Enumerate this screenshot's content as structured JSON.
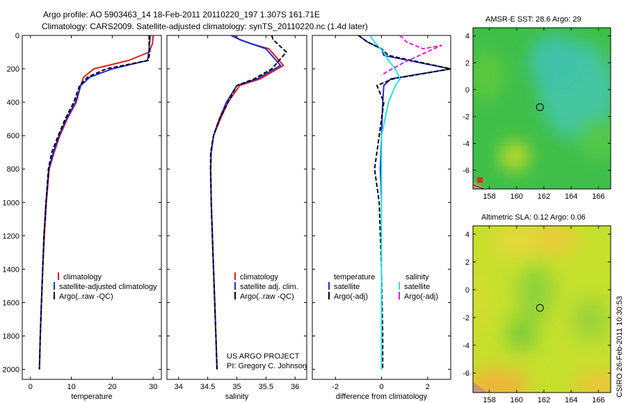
{
  "header": {
    "line1": "Argo profile: AO 5903463_14 18-Feb-2011 20110220_197 1.307S 161.71E",
    "line2": "Climatology: CARS2009. Satellite-adjusted climatology: synTS_20110220.nc (1.4d later)"
  },
  "colors": {
    "climatology": "#e01a1a",
    "satellite": "#1a2bd8",
    "argo": "#000000",
    "sat_salinity": "#22e2e8",
    "argo_salinity": "#e020d8"
  },
  "credits": {
    "project": "US ARGO PROJECT",
    "pi": "PI: Gregory C. Johnson",
    "stamp": "CSIRO 26-Feb-2011 10:30:53"
  },
  "chart_data": [
    {
      "id": "temperature-profile",
      "type": "line",
      "xlabel": "temperature",
      "ylabel": "",
      "xlim": [
        -2,
        32
      ],
      "ylim": [
        2060,
        0
      ],
      "xticks": [
        0,
        10,
        20,
        30
      ],
      "yticks": [
        0,
        200,
        400,
        600,
        800,
        1000,
        1200,
        1400,
        1600,
        1800,
        2000
      ],
      "legend": [
        "climatology",
        "satellite-adjusted climatology",
        "Argo(..raw -QC)"
      ],
      "series": [
        {
          "name": "climatology",
          "x": [
            30.0,
            29.8,
            29.0,
            24.0,
            15.5,
            13.0,
            12.3,
            11.2,
            9.0,
            7.2,
            5.8,
            4.6,
            3.9,
            3.4,
            3.0,
            2.7,
            2.4,
            2.2
          ],
          "y": [
            0,
            50,
            100,
            150,
            200,
            250,
            300,
            400,
            500,
            600,
            700,
            800,
            1000,
            1200,
            1400,
            1600,
            1800,
            2000
          ]
        },
        {
          "name": "satellite-adjusted climatology",
          "x": [
            29.3,
            29.1,
            28.9,
            28.6,
            20.0,
            14.5,
            12.3,
            11.0,
            8.8,
            7.0,
            5.6,
            4.5,
            3.8,
            3.3,
            3.0,
            2.7,
            2.4,
            2.2
          ],
          "y": [
            0,
            50,
            100,
            150,
            200,
            250,
            300,
            400,
            500,
            600,
            700,
            800,
            1000,
            1200,
            1400,
            1600,
            1800,
            2000
          ]
        },
        {
          "name": "Argo(..raw -QC)",
          "x": [
            29.0,
            29.0,
            29.2,
            28.8,
            18.5,
            14.0,
            12.0,
            10.6,
            8.5,
            6.8,
            5.2,
            4.4,
            3.8,
            3.3,
            3.0,
            2.7,
            2.4,
            2.2
          ],
          "y": [
            0,
            50,
            100,
            150,
            200,
            250,
            300,
            400,
            500,
            600,
            700,
            800,
            1000,
            1200,
            1400,
            1600,
            1800,
            2000
          ]
        }
      ]
    },
    {
      "id": "salinity-profile",
      "type": "line",
      "xlabel": "salinity",
      "xlim": [
        33.8,
        36.2
      ],
      "ylim": [
        2060,
        0
      ],
      "xticks": [
        34,
        34.5,
        35,
        35.5,
        36
      ],
      "legend": [
        "climatology",
        "satellite adj. clim.",
        "Argo(..raw -QC)"
      ],
      "series": [
        {
          "name": "climatology",
          "x": [
            34.95,
            35.05,
            35.25,
            35.55,
            35.8,
            35.4,
            35.05,
            34.85,
            34.72,
            34.6,
            34.56,
            34.55,
            34.56,
            34.58,
            34.6,
            34.62,
            34.64,
            34.66
          ],
          "y": [
            0,
            25,
            50,
            80,
            180,
            260,
            300,
            400,
            500,
            600,
            700,
            800,
            1000,
            1200,
            1400,
            1600,
            1800,
            2000
          ]
        },
        {
          "name": "satellite adj. clim.",
          "x": [
            34.9,
            35.05,
            35.25,
            35.5,
            35.75,
            35.35,
            35.0,
            34.82,
            34.7,
            34.6,
            34.56,
            34.55,
            34.56,
            34.58,
            34.6,
            34.62,
            34.64,
            34.66
          ],
          "y": [
            0,
            25,
            50,
            80,
            180,
            260,
            300,
            400,
            500,
            600,
            700,
            800,
            1000,
            1200,
            1400,
            1600,
            1800,
            2000
          ]
        },
        {
          "name": "Argo(..raw -QC)",
          "x": [
            35.6,
            35.62,
            35.7,
            35.85,
            35.6,
            35.3,
            35.0,
            34.85,
            34.7,
            34.6,
            34.55,
            34.55,
            34.56,
            34.58,
            34.6,
            34.62,
            34.64,
            34.66
          ],
          "y": [
            0,
            25,
            50,
            100,
            200,
            260,
            300,
            400,
            500,
            600,
            700,
            800,
            1000,
            1200,
            1400,
            1600,
            1800,
            2000
          ]
        }
      ]
    },
    {
      "id": "difference-profile",
      "type": "line",
      "xlabel": "difference from climatology",
      "xlim": [
        -3,
        3
      ],
      "ylim": [
        2060,
        0
      ],
      "xticks": [
        -2,
        0,
        2
      ],
      "legend_left_title": "temperature",
      "legend_right_title": "salinity",
      "legend_left": [
        "satellite",
        "Argo(-adj)"
      ],
      "legend_right": [
        "satellite",
        "Argo(-adj)"
      ],
      "series": [
        {
          "name": "temperature satellite",
          "x": [
            -1.0,
            -0.6,
            0.0,
            0.1,
            3.0,
            0.4,
            0.1,
            0.05,
            0.0,
            -0.05,
            0.0,
            0.0,
            0.0,
            0.0
          ],
          "y": [
            0,
            40,
            80,
            120,
            200,
            260,
            300,
            400,
            600,
            800,
            1000,
            1400,
            1800,
            2000
          ]
        },
        {
          "name": "temperature Argo(-adj)",
          "x": [
            -1.0,
            -0.6,
            0.0,
            0.3,
            3.0,
            0.5,
            -0.2,
            0.1,
            -0.1,
            -0.3,
            -0.1,
            0.0,
            0.05,
            0.05
          ],
          "y": [
            0,
            40,
            80,
            120,
            200,
            260,
            300,
            400,
            600,
            800,
            1000,
            1400,
            1800,
            2000
          ]
        },
        {
          "name": "salinity satellite",
          "x": [
            -0.5,
            -0.3,
            0.1,
            0.3,
            0.6,
            0.8,
            0.6,
            0.3,
            0.0,
            0.0,
            0.0,
            0.0
          ],
          "y": [
            0,
            40,
            100,
            150,
            200,
            260,
            300,
            400,
            600,
            1000,
            1600,
            2000
          ]
        },
        {
          "name": "salinity Argo(-adj)",
          "x": [
            0.8,
            1.1,
            1.8,
            2.6,
            1.0,
            0.2,
            0.0
          ],
          "y": [
            0,
            40,
            80,
            60,
            160,
            220,
            240
          ]
        }
      ]
    },
    {
      "id": "amsr-sst-map",
      "type": "heatmap",
      "title": "AMSR-E SST: 28.6  Argo: 29",
      "xlim": [
        156.8,
        166.9
      ],
      "ylim": [
        -7.4,
        4.6
      ],
      "xticks": [
        158,
        160,
        162,
        164,
        166
      ],
      "yticks": [
        4,
        2,
        0,
        -2,
        -4,
        -6
      ],
      "marker": {
        "lon": 161.71,
        "lat": -1.307
      }
    },
    {
      "id": "altimetric-sla-map",
      "type": "heatmap",
      "title": "Altimetric SLA: 0.12  Argo: 0.06",
      "xlim": [
        156.8,
        166.9
      ],
      "ylim": [
        -7.4,
        4.6
      ],
      "xticks": [
        158,
        160,
        162,
        164,
        166
      ],
      "yticks": [
        4,
        2,
        0,
        -2,
        -4,
        -6
      ],
      "marker": {
        "lon": 161.71,
        "lat": -1.307
      }
    }
  ]
}
